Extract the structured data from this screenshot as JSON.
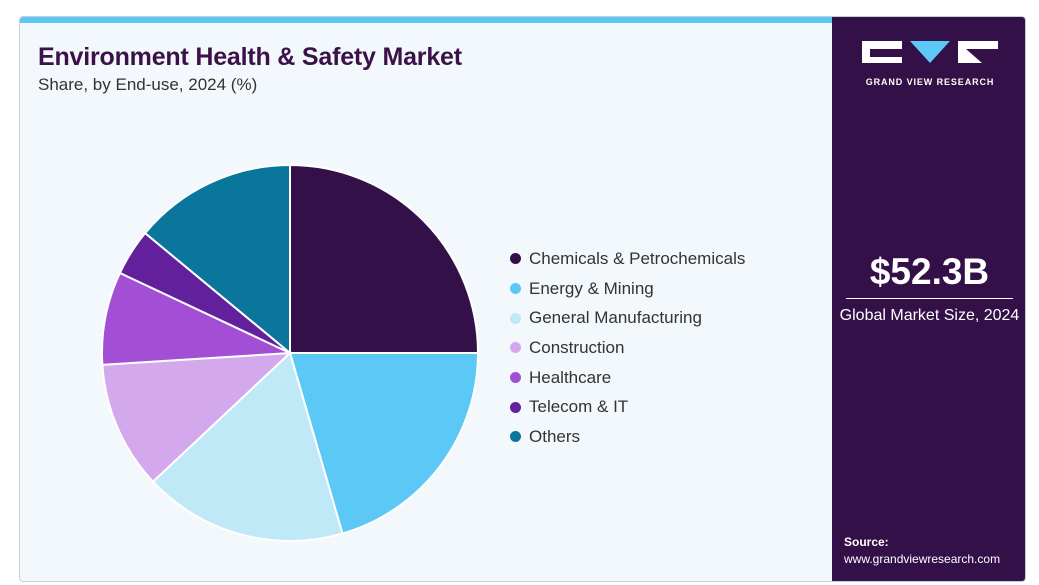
{
  "header": {
    "title": "Environment Health & Safety Market",
    "subtitle": "Share, by End-use, 2024 (%)"
  },
  "colors": {
    "accent_bar": "#5bc8f5",
    "sidebar_bg": "#341048",
    "title": "#3b1248",
    "panel_bg": "#f2f8fb"
  },
  "chart_data": {
    "type": "pie",
    "title": "Environment Health & Safety Market",
    "subtitle": "Share, by End-use, 2024 (%)",
    "legend_position": "right",
    "categories": [
      "Chemicals & Petrochemicals",
      "Energy & Mining",
      "General Manufacturing",
      "Construction",
      "Healthcare",
      "Telecom & IT",
      "Others"
    ],
    "values": [
      25.0,
      20.5,
      17.5,
      11.0,
      8.0,
      4.0,
      14.0
    ],
    "colors": [
      "#341048",
      "#5bc8f5",
      "#c0e9f8",
      "#d4a8ec",
      "#a24fd6",
      "#62209c",
      "#0b769b"
    ]
  },
  "sidebar": {
    "logo_text": "GRAND VIEW RESEARCH",
    "market_size": "$52.3B",
    "market_size_label": "Global Market Size, 2024",
    "source_label": "Source:",
    "source_url": "www.grandviewresearch.com"
  }
}
